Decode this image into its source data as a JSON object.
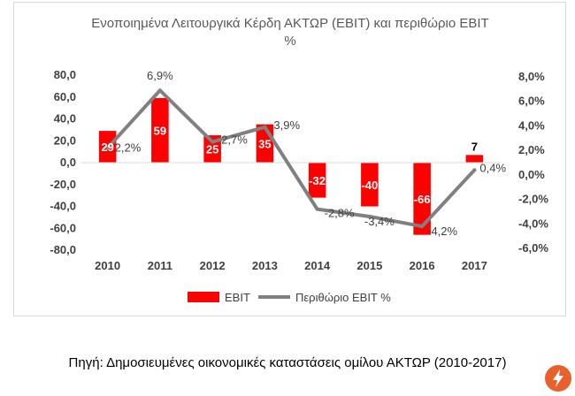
{
  "chart_data": {
    "type": "bar+line",
    "title_line1": "Ενοποιημένα Λειτουργικά Κέρδη ΑΚΤΩΡ (EBIT) και περιθώριο EBIT",
    "title_line2": "%",
    "categories": [
      "2010",
      "2011",
      "2012",
      "2013",
      "2014",
      "2015",
      "2016",
      "2017"
    ],
    "series": [
      {
        "name": "EBIT",
        "type": "bar",
        "axis": "left",
        "color": "#ff0000",
        "values": [
          29,
          59,
          25,
          35,
          -32,
          -40,
          -66,
          7
        ],
        "labels": [
          "29",
          "59",
          "25",
          "35",
          "-32",
          "-40",
          "-66",
          "7"
        ]
      },
      {
        "name": "Περιθώριο EBIT %",
        "type": "line",
        "axis": "right",
        "color": "#808080",
        "values": [
          2.2,
          6.9,
          2.7,
          3.9,
          -2.8,
          -3.4,
          -4.2,
          0.4
        ],
        "labels": [
          "2,2%",
          "6,9%",
          "2,7%",
          "3,9%",
          "-2,8%",
          "-3,4%",
          "-4,2%",
          "0,4%"
        ]
      }
    ],
    "y_left": {
      "range": [
        -80,
        80
      ],
      "ticks": [
        80,
        60,
        40,
        20,
        0,
        -20,
        -40,
        -60,
        -80
      ],
      "tick_labels": [
        "80,0",
        "60,0",
        "40,0",
        "20,0",
        "0,0",
        "-20,0",
        "-40,0",
        "-60,0",
        "-80,0"
      ]
    },
    "y_right": {
      "range": [
        -6,
        8
      ],
      "ticks": [
        8,
        6,
        4,
        2,
        0,
        -2,
        -4,
        -6
      ],
      "tick_labels": [
        "8,0%",
        "6,0%",
        "4,0%",
        "2,0%",
        "0,0%",
        "-2,0%",
        "-4,0%",
        "-6,0%"
      ]
    },
    "grid": false,
    "legend_position": "bottom",
    "legend": [
      "EBIT",
      "Περιθώριο EBIT %"
    ]
  },
  "footer": {
    "source": "Πηγή: Δημοσιευμένες οικονομικές καταστάσεις ομίλου ΑΚΤΩΡ (2010-2017)"
  },
  "icons": {
    "corner": "lightning-bolt-icon",
    "corner_color": "#e8612c"
  }
}
